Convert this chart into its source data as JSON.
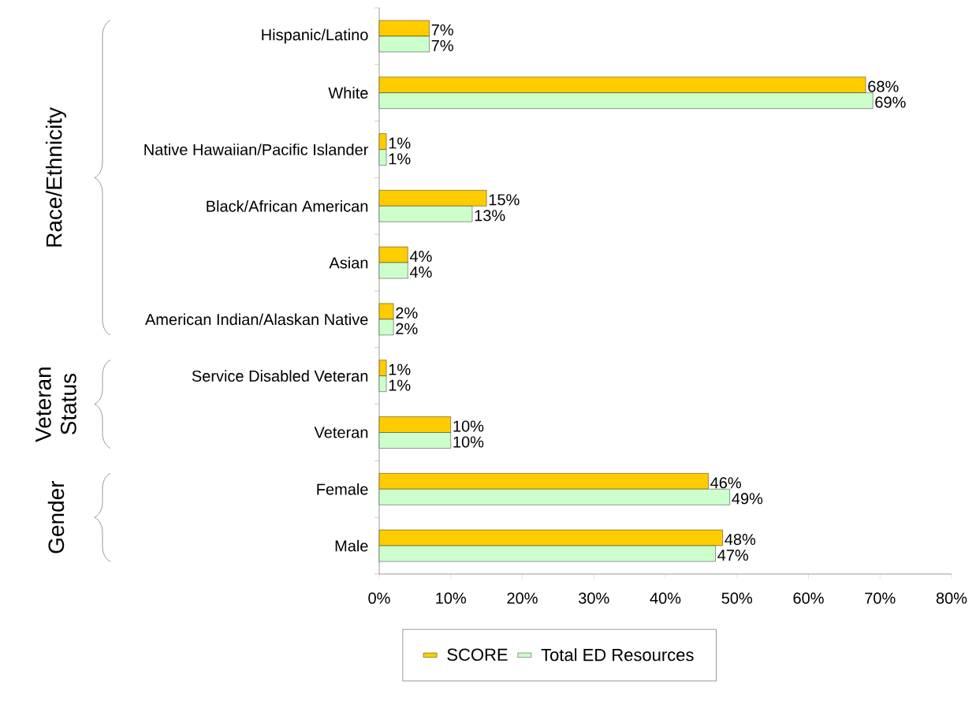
{
  "chart_data": {
    "type": "bar",
    "orientation": "horizontal",
    "categories": [
      "Hispanic/Latino",
      "White",
      "Native Hawaiian/Pacific Islander",
      "Black/African American",
      "Asian",
      "American Indian/Alaskan Native",
      "Service Disabled Veteran",
      "Veteran",
      "Female",
      "Male"
    ],
    "series": [
      {
        "name": "SCORE",
        "color": "#ffcc00",
        "values": [
          7,
          68,
          1,
          15,
          4,
          2,
          1,
          10,
          46,
          48
        ],
        "value_labels": [
          "7%",
          "68%",
          "1%",
          "15%",
          "4%",
          "2%",
          "1%",
          "10%",
          "46%",
          "48%"
        ]
      },
      {
        "name": "Total ED Resources",
        "color": "#ccffcc",
        "values": [
          7,
          69,
          1,
          13,
          4,
          2,
          1,
          10,
          49,
          47
        ],
        "value_labels": [
          "7%",
          "69%",
          "1%",
          "13%",
          "4%",
          "2%",
          "1%",
          "10%",
          "49%",
          "47%"
        ]
      }
    ],
    "xlim": [
      0,
      80
    ],
    "xticks": [
      {
        "value": 0,
        "label": "0%"
      },
      {
        "value": 10,
        "label": "10%"
      },
      {
        "value": 20,
        "label": "20%"
      },
      {
        "value": 30,
        "label": "30%"
      },
      {
        "value": 40,
        "label": "40%"
      },
      {
        "value": 50,
        "label": "50%"
      },
      {
        "value": 60,
        "label": "60%"
      },
      {
        "value": 70,
        "label": "70%"
      },
      {
        "value": 80,
        "label": "80%"
      }
    ],
    "grid": false,
    "legend": "bottom",
    "annotations": [
      "Race/Ethnicity",
      "Veteran Status",
      "Gender"
    ]
  }
}
